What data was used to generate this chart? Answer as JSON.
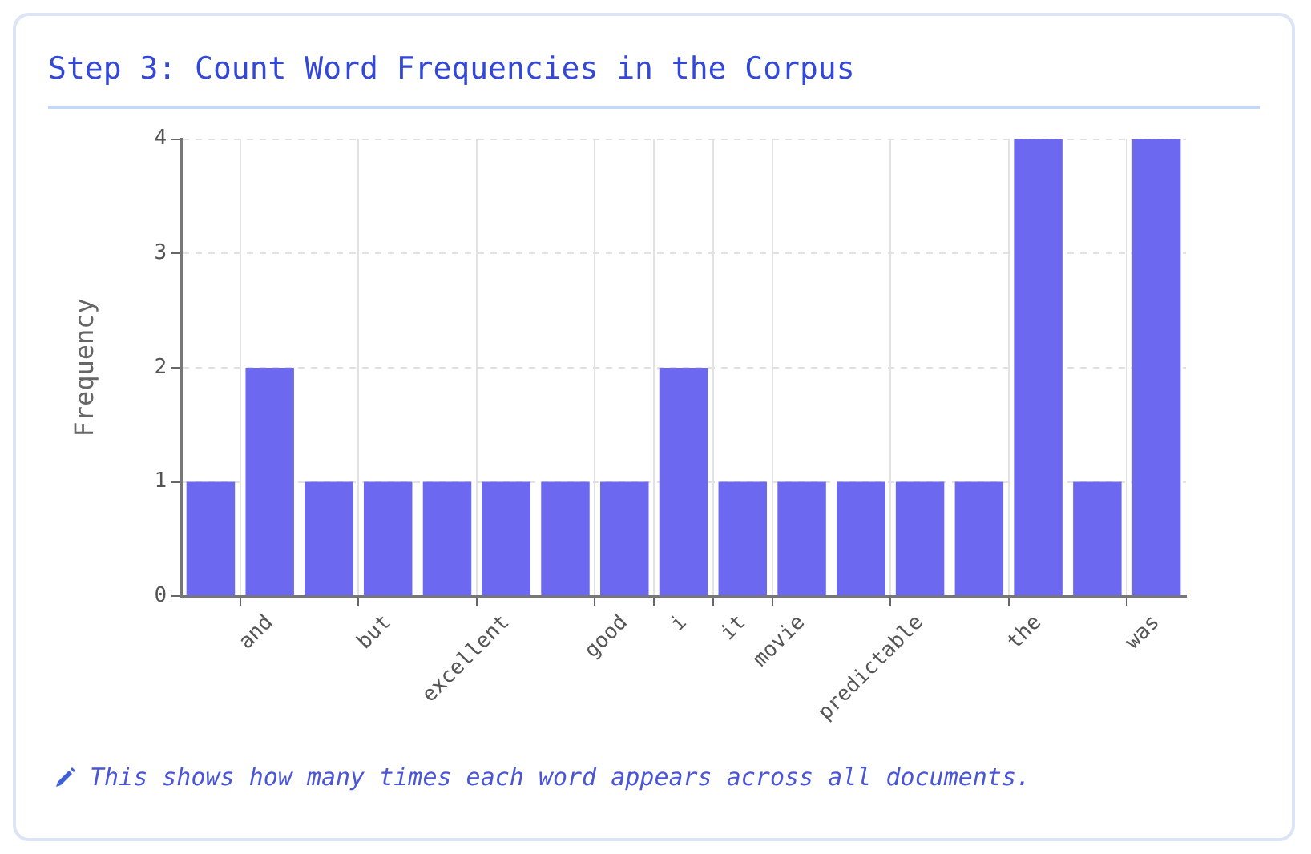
{
  "chart_data": {
    "type": "bar",
    "title": "Step 3: Count Word Frequencies in the Corpus",
    "ylabel": "Frequency",
    "categories": [
      null,
      "and",
      null,
      "but",
      null,
      "excellent",
      null,
      "good",
      "i",
      "it",
      "movie",
      null,
      "predictable",
      null,
      "the",
      null,
      "was"
    ],
    "values": [
      1,
      2,
      1,
      1,
      1,
      1,
      1,
      1,
      2,
      1,
      1,
      1,
      1,
      1,
      4,
      1,
      4
    ],
    "color": "#6c68f0",
    "ylim": [
      0,
      4
    ],
    "yticks": [
      0,
      1,
      2,
      3,
      4
    ],
    "grid": true,
    "annotations": [
      "This shows how many times each word appears across all documents."
    ]
  }
}
